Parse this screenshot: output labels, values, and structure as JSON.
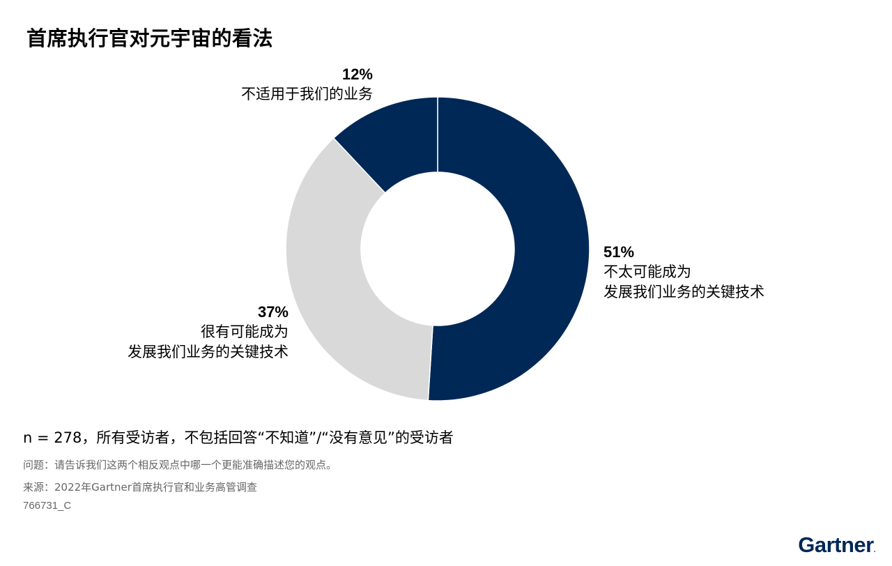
{
  "title": "首席执行官对元宇宙的看法",
  "chart_data": {
    "type": "pie",
    "donut": true,
    "slices": [
      {
        "value": 51,
        "pct_label": "51%",
        "label_lines": [
          "不太可能成为",
          "发展我们业务的关键技术"
        ],
        "color": "#002856"
      },
      {
        "value": 37,
        "pct_label": "37%",
        "label_lines": [
          "很有可能成为",
          "发展我们业务的关键技术"
        ],
        "color": "#d9d9d9"
      },
      {
        "value": 12,
        "pct_label": "12%",
        "label_lines": [
          "不适用于我们的业务"
        ],
        "color": "#002856"
      }
    ]
  },
  "footnote": "n = 278，所有受访者，不包括回答“不知道”/“没有意见”的受访者",
  "question": "问题：请告诉我们这两个相反观点中哪一个更能准确描述您的观点。",
  "source": "来源：2022年Gartner首席执行官和业务高管调查",
  "doc_id": "766731_C",
  "logo": "Gartner"
}
